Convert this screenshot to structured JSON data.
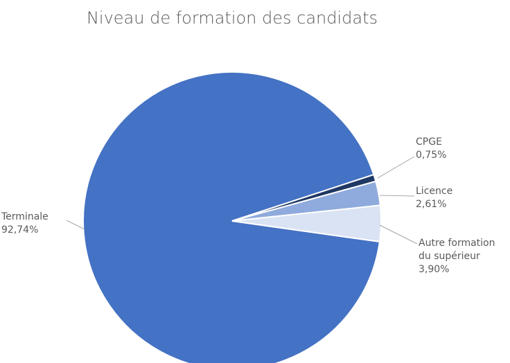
{
  "chart_data": {
    "type": "pie",
    "title": "Niveau de formation des candidats",
    "categories": [
      "Terminale",
      "CPGE",
      "Licence",
      "Autre formation du supérieur"
    ],
    "values": [
      92.74,
      0.75,
      2.61,
      3.9
    ],
    "value_labels": [
      "92,74%",
      "0,75%",
      "2,61%",
      "3,90%"
    ],
    "colors": [
      "#4472c4",
      "#1f3864",
      "#8faadc",
      "#dae3f3"
    ]
  }
}
